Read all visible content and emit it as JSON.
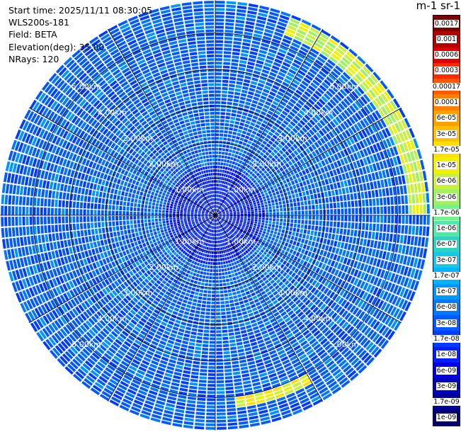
{
  "header": {
    "start_time": "Start time: 2025/11/11 08:30:05",
    "instrument": "WLS200s-181",
    "field": "Field: BETA",
    "elevation": "Elevation(deg): 35.00",
    "nrays": "NRays: 120"
  },
  "colorbar": {
    "title": "m-1 sr-1",
    "labels": [
      "0.0017",
      "0.001",
      "0.0006",
      "0.0003",
      "0.00017",
      "0.0001",
      "6e-05",
      "3e-05",
      "1.7e-05",
      "1e-05",
      "6e-06",
      "3e-06",
      "1.7e-06",
      "1e-06",
      "6e-07",
      "3e-07",
      "1.7e-07",
      "1e-07",
      "6e-08",
      "3e-08",
      "1.7e-08",
      "1e-08",
      "6e-09",
      "3e-09",
      "1.7e-09",
      "1e-09"
    ],
    "colors": [
      "#7a0000",
      "#b30000",
      "#e10000",
      "#ff2a00",
      "#ff5800",
      "#ff7f00",
      "#ff9f00",
      "#ffc000",
      "#ffe000",
      "#f0f000",
      "#c8f03c",
      "#a0f064",
      "#78f08c",
      "#55e6aa",
      "#2ad2c8",
      "#14c8e6",
      "#00b4ff",
      "#0096ff",
      "#0078ff",
      "#005aff",
      "#003cff",
      "#001eff",
      "#0000e6",
      "#0000c0",
      "#000096",
      "#000070"
    ],
    "dark_text_from": 0,
    "white_text_indices": [
      0,
      1,
      2,
      3,
      4,
      5,
      22,
      23,
      24,
      25
    ]
  },
  "chart_data": {
    "type": "heatmap",
    "projection": "polar PPI (plan position indicator)",
    "nrays": 120,
    "range_rings_km": [
      1,
      2,
      3,
      4,
      5
    ],
    "range_ring_labels": [
      "1.00km",
      "2.00km",
      "3.00km",
      "4.00km",
      "5.00km"
    ],
    "max_range_km": 5.9,
    "azimuth_spokes_deg": [
      0,
      30,
      60,
      90,
      120,
      150,
      180,
      210,
      240,
      270,
      300,
      330
    ],
    "background_level": "3e-08",
    "features": [
      {
        "description": "enhanced backscatter arc",
        "azimuth_deg_range": [
          20,
          90
        ],
        "range_km": [
          5.3,
          5.8
        ],
        "level": "1e-05"
      },
      {
        "description": "enhanced backscatter arc",
        "azimuth_deg_range": [
          150,
          175
        ],
        "range_km": [
          5.0,
          5.3
        ],
        "level": "1.7e-05"
      }
    ],
    "colorscale": "log",
    "vmin": "1e-09",
    "vmax": "0.0017"
  }
}
